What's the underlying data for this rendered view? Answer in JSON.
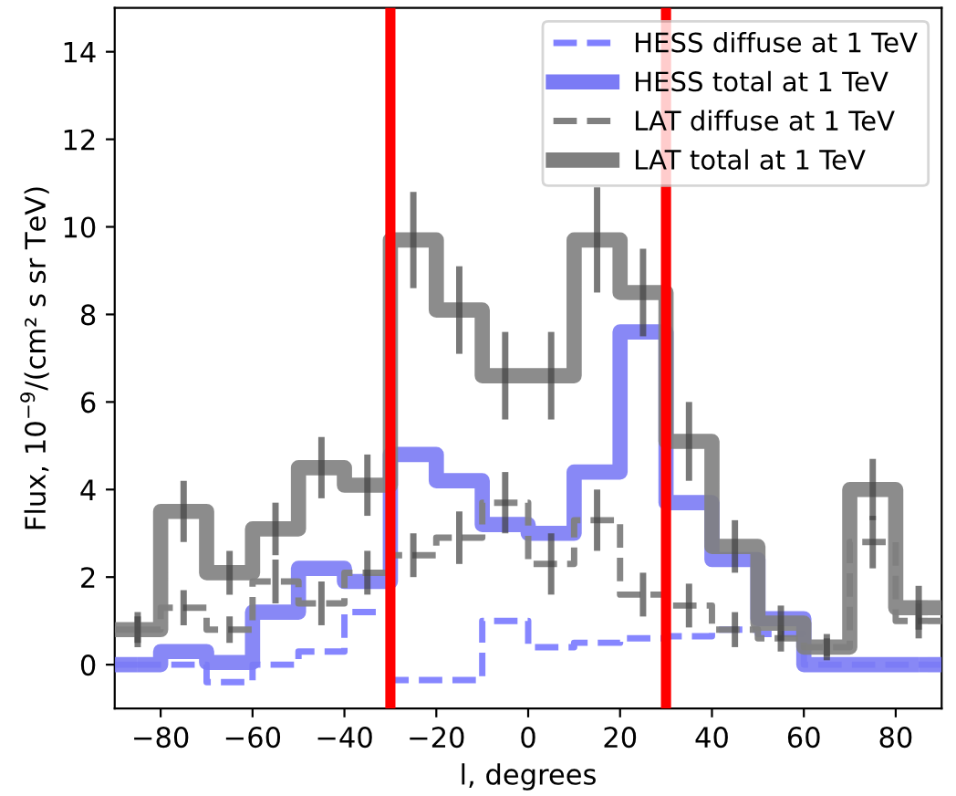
{
  "chart_data": {
    "type": "step",
    "xlabel": "l, degrees",
    "ylabel": "Flux, 10$^{−9}$/(cm² s sr TeV)",
    "x": [
      -85,
      -75,
      -65,
      -55,
      -45,
      -35,
      -25,
      -15,
      -5,
      5,
      15,
      25,
      35,
      45,
      55,
      65,
      75,
      85
    ],
    "xlim": [
      -90,
      90
    ],
    "ylim": [
      -1,
      15
    ],
    "xticks": [
      {
        "value": -80,
        "label": "−80"
      },
      {
        "value": -60,
        "label": "−60"
      },
      {
        "value": -40,
        "label": "−40"
      },
      {
        "value": -20,
        "label": "−20"
      },
      0,
      20,
      40,
      60,
      80
    ],
    "yticks": [
      0,
      2,
      4,
      6,
      8,
      10,
      12,
      14
    ],
    "grid": false,
    "legend": "top right",
    "series": [
      {
        "name": "HESS diffuse at 1 TeV",
        "color": "#8080ff",
        "line_style": "dashed",
        "values": [
          0,
          0,
          -0.4,
          0,
          0.3,
          1.2,
          -0.35,
          -0.35,
          1.0,
          0.4,
          0.5,
          0.6,
          0.65,
          0.8,
          0.7,
          0,
          0,
          0
        ]
      },
      {
        "name": "HESS total at 1 TeV",
        "color": "#7b7bf5",
        "line_style": "solid",
        "values": [
          0,
          0.3,
          0.05,
          1.2,
          2.2,
          1.9,
          4.8,
          4.2,
          3.2,
          3.0,
          4.4,
          7.6,
          3.7,
          2.4,
          1.05,
          0,
          0,
          0
        ]
      },
      {
        "name": "LAT diffuse at 1 TeV",
        "color": "#808080",
        "line_style": "dashed",
        "values": [
          0.8,
          1.3,
          0.8,
          1.9,
          1.4,
          2.1,
          2.5,
          2.9,
          3.7,
          2.3,
          3.3,
          1.6,
          1.35,
          0.8,
          0.6,
          0.4,
          2.8,
          1.0
        ],
        "errors": [
          0.3,
          0.4,
          0.3,
          0.5,
          0.5,
          0.5,
          0.5,
          0.6,
          0.7,
          0.7,
          0.7,
          0.5,
          0.5,
          0.4,
          0.3,
          0.2,
          0.6,
          0.4
        ]
      },
      {
        "name": "LAT total at 1 TeV",
        "color": "#7f7f7f",
        "line_style": "solid",
        "values": [
          0.8,
          3.5,
          2.1,
          3.1,
          4.5,
          4.1,
          9.7,
          8.1,
          6.6,
          6.6,
          9.7,
          8.5,
          5.1,
          2.7,
          0.95,
          0.4,
          4.0,
          1.3
        ],
        "errors": [
          0.4,
          0.7,
          0.5,
          0.6,
          0.7,
          0.7,
          1.1,
          1.0,
          1.0,
          1.0,
          1.2,
          1.0,
          0.9,
          0.6,
          0.4,
          0.3,
          0.7,
          0.5
        ]
      }
    ],
    "ref_lines": [
      {
        "axis": "x",
        "value": -30,
        "color": "#ff0000",
        "line_style": "solid"
      },
      {
        "axis": "x",
        "value": 30,
        "color": "#ff0000",
        "line_style": "solid"
      }
    ]
  }
}
